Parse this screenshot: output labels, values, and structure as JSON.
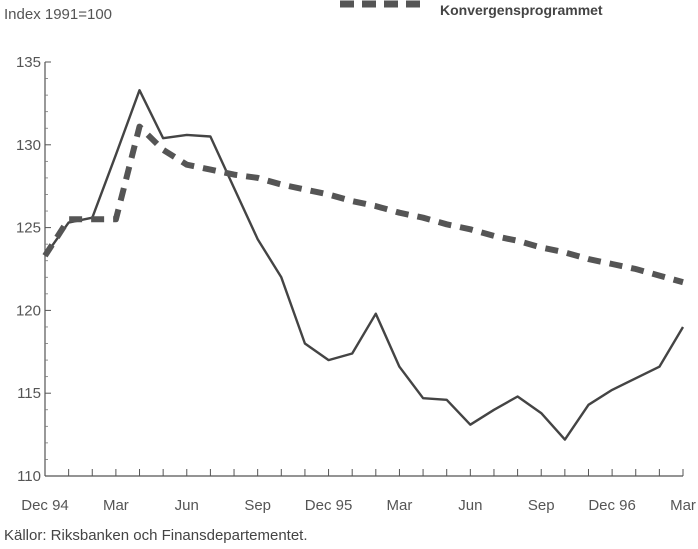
{
  "chart_data": {
    "type": "line",
    "ylabel": "Index 1991=100",
    "ylim": [
      110,
      135
    ],
    "yticks": [
      110,
      115,
      120,
      125,
      130,
      135
    ],
    "x_tick_labels": [
      "Dec 94",
      "Mar",
      "Jun",
      "Sep",
      "Dec 95",
      "Mar",
      "Jun",
      "Sep",
      "Dec 96",
      "Mar"
    ],
    "legend_position": "top-right",
    "grid": false,
    "source": "Källor: Riksbanken och Finansdepartementet.",
    "series": [
      {
        "style": "solid",
        "color": "#444444",
        "values": [
          123.3,
          125.3,
          125.6,
          129.4,
          133.3,
          130.4,
          130.6,
          130.5,
          127.4,
          124.3,
          122.0,
          118.0,
          117.0,
          117.4,
          119.8,
          116.6,
          114.7,
          114.6,
          113.1,
          114.0,
          114.8,
          113.8,
          112.2,
          114.3,
          115.2,
          115.9,
          116.6,
          119.0
        ]
      },
      {
        "name": "Konvergensprogrammet",
        "style": "dashed",
        "color": "#555555",
        "values": [
          123.3,
          125.5,
          125.5,
          125.5,
          131.1,
          129.7,
          128.8,
          128.5,
          128.2,
          128.0,
          127.6,
          127.3,
          127.0,
          126.6,
          126.3,
          125.9,
          125.6,
          125.2,
          124.9,
          124.5,
          124.2,
          123.8,
          123.5,
          123.1,
          122.8,
          122.5,
          122.1,
          121.7
        ]
      }
    ]
  }
}
